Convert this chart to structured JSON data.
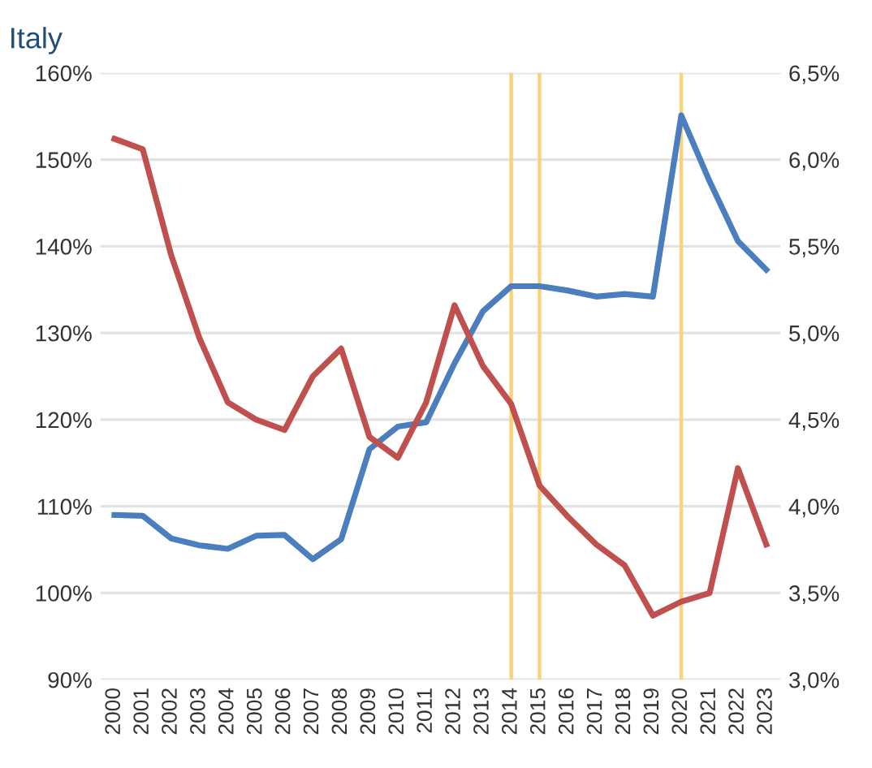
{
  "chart_data": {
    "type": "line",
    "title": "Italy",
    "categories": [
      "2000",
      "2001",
      "2002",
      "2003",
      "2004",
      "2005",
      "2006",
      "2007",
      "2008",
      "2009",
      "2010",
      "2011",
      "2012",
      "2013",
      "2014",
      "2015",
      "2016",
      "2017",
      "2018",
      "2019",
      "2020",
      "2021",
      "2022",
      "2023"
    ],
    "series": [
      {
        "color": "#4a7ebf",
        "values": [
          109,
          108.9,
          106.3,
          105.5,
          105.1,
          106.6,
          106.7,
          103.9,
          106.2,
          116.6,
          119.2,
          119.7,
          126.5,
          132.5,
          135.4,
          135.4,
          134.9,
          134.2,
          134.5,
          134.2,
          155.1,
          147.5,
          140.6,
          137.3
        ]
      },
      {
        "color": "#c0504d",
        "axis": "y2",
        "values": [
          6.12,
          6.06,
          5.45,
          4.97,
          4.6,
          4.5,
          4.44,
          4.75,
          4.91,
          4.4,
          4.28,
          4.6,
          5.16,
          4.81,
          4.59,
          4.12,
          3.94,
          3.78,
          3.66,
          3.37,
          3.45,
          3.5,
          4.22,
          3.78
        ]
      }
    ],
    "ylim": [
      90,
      160
    ],
    "yticks": [
      {
        "value": 90,
        "label": "90%"
      },
      {
        "value": 100,
        "label": "100%"
      },
      {
        "value": 110,
        "label": "110%"
      },
      {
        "value": 120,
        "label": "120%"
      },
      {
        "value": 130,
        "label": "130%"
      },
      {
        "value": 140,
        "label": "140%"
      },
      {
        "value": 150,
        "label": "150%"
      },
      {
        "value": 160,
        "label": "160%"
      }
    ],
    "y2lim": [
      3.0,
      6.5
    ],
    "y2ticks": [
      {
        "value": 3.0,
        "label": "3,0%"
      },
      {
        "value": 3.5,
        "label": "3,5%"
      },
      {
        "value": 4.0,
        "label": "4,0%"
      },
      {
        "value": 4.5,
        "label": "4,5%"
      },
      {
        "value": 5.0,
        "label": "5,0%"
      },
      {
        "value": 5.5,
        "label": "5,5%"
      },
      {
        "value": 6.0,
        "label": "6,0%"
      },
      {
        "value": 6.5,
        "label": "6,5%"
      }
    ],
    "ref_lines": [
      {
        "axis": "x",
        "value": "2014",
        "color": "#f9d27a"
      },
      {
        "axis": "x",
        "value": "2015",
        "color": "#f9d27a"
      },
      {
        "axis": "x",
        "value": "2020",
        "color": "#f9d27a"
      }
    ],
    "grid": "y",
    "marker": "none",
    "line_style": "solid"
  }
}
